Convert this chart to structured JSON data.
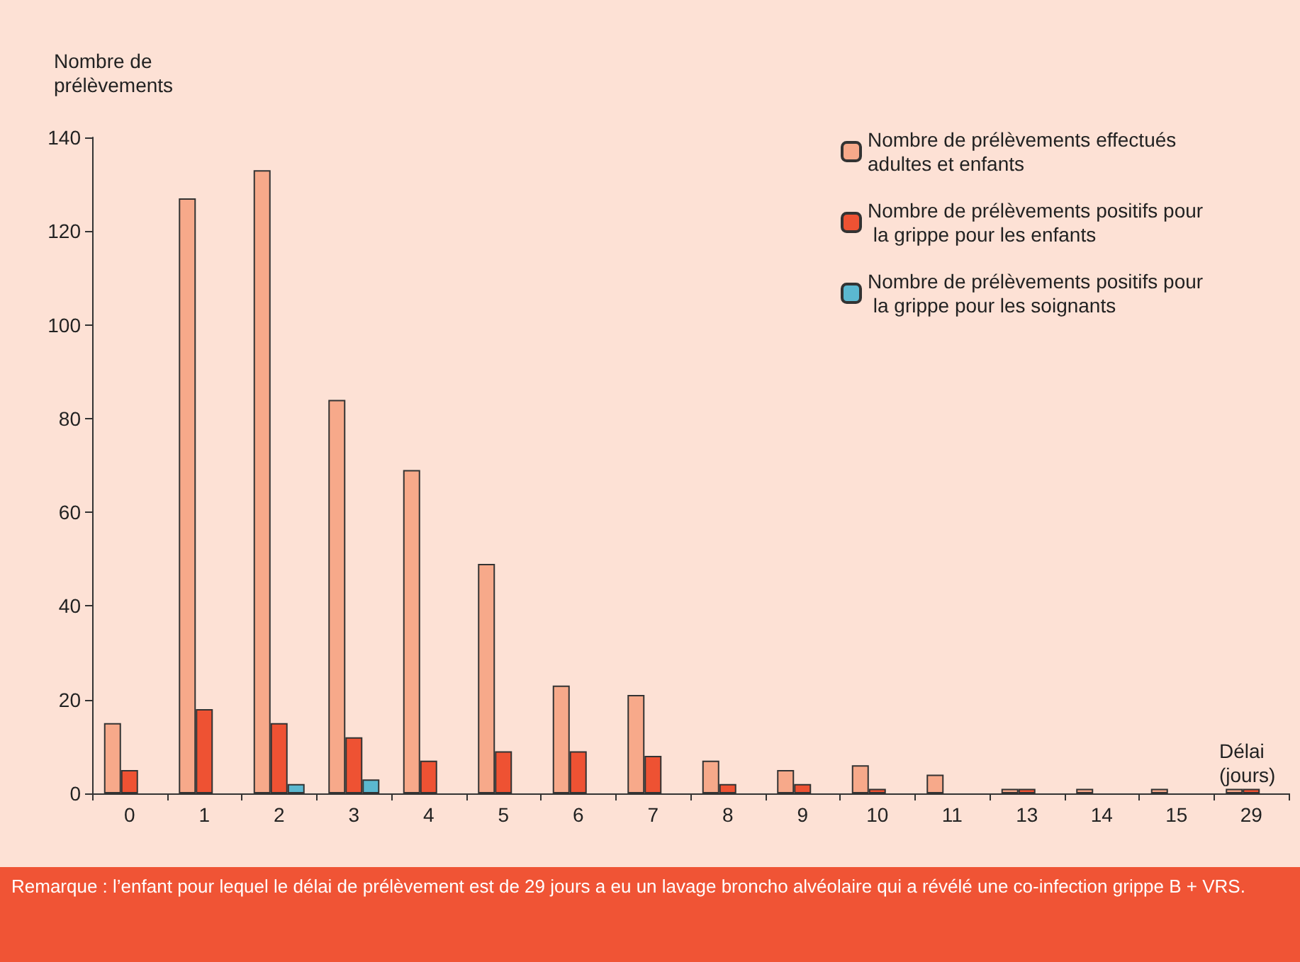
{
  "chart_data": {
    "type": "bar",
    "xlabel": "Délai (jours)",
    "ylabel": "Nombre de prélèvements",
    "categories": [
      "0",
      "1",
      "2",
      "3",
      "4",
      "5",
      "6",
      "7",
      "8",
      "9",
      "10",
      "11",
      "13",
      "14",
      "15",
      "29"
    ],
    "series": [
      {
        "name": "Nombre de prélèvements effectués adultes et enfants",
        "color": "#f7a98a",
        "values": [
          15,
          127,
          133,
          84,
          69,
          49,
          23,
          21,
          7,
          5,
          6,
          4,
          1,
          1,
          1,
          1
        ]
      },
      {
        "name": "Nombre de prélèvements positifs pour la grippe pour les enfants",
        "color": "#ee5233",
        "values": [
          5,
          18,
          15,
          12,
          7,
          9,
          9,
          8,
          2,
          2,
          1,
          null,
          1,
          null,
          null,
          1
        ]
      },
      {
        "name": "Nombre de prélèvements positifs pour la grippe pour les soignants",
        "color": "#5bb8d0",
        "values": [
          null,
          null,
          2,
          3,
          null,
          null,
          null,
          null,
          null,
          null,
          null,
          null,
          null,
          null,
          null,
          null
        ]
      }
    ],
    "ylim": [
      0,
      140
    ],
    "yticks": [
      0,
      20,
      40,
      60,
      80,
      100,
      120,
      140
    ],
    "grid": false,
    "legend": "top right",
    "annotations": [
      "Remarque : l’enfant pour lequel le délai de prélèvement est de 29 jours a eu un lavage broncho alvéolaire qui a révélé une co-infection grippe B + VRS."
    ]
  }
}
